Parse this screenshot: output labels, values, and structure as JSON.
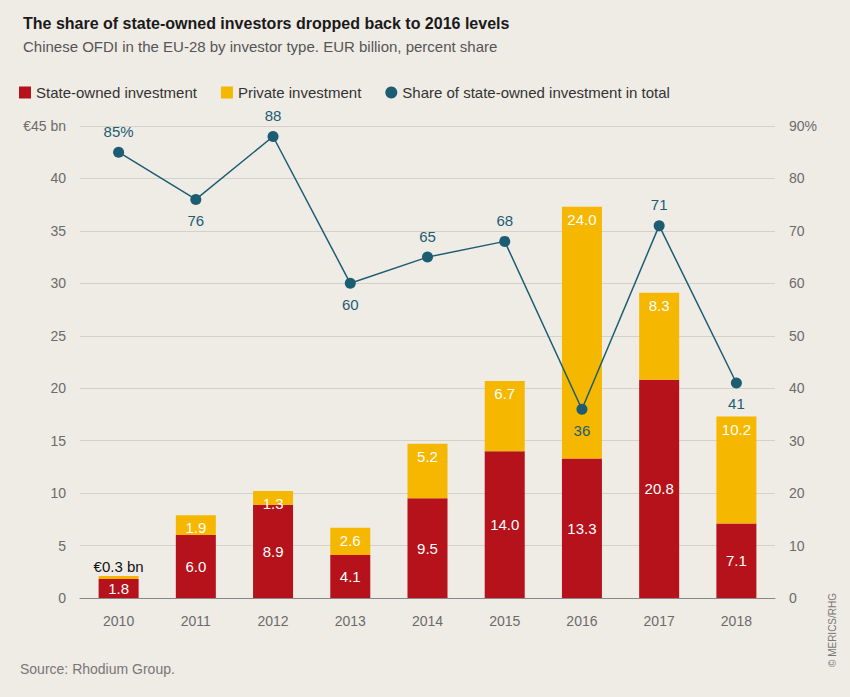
{
  "chart_data": {
    "type": "bar",
    "title": "The share of state-owned investors dropped back to 2016 levels",
    "subtitle": "Chinese OFDI in the EU-28 by investor type. EUR billion, percent share",
    "source": "Source: Rhodium Group.",
    "credit": "© MERICS/RHG",
    "categories": [
      "2010",
      "2011",
      "2012",
      "2013",
      "2014",
      "2015",
      "2016",
      "2017",
      "2018"
    ],
    "stacked": true,
    "data_labels": true,
    "grid": true,
    "legend": "top-left",
    "ylim": [
      0,
      45
    ],
    "yticks": [
      0,
      5,
      10,
      15,
      20,
      25,
      30,
      35,
      40,
      {
        "value": 45,
        "label": "€45 bn"
      }
    ],
    "y2lim": [
      0,
      90
    ],
    "y2ticks": [
      0,
      10,
      20,
      30,
      40,
      50,
      60,
      70,
      80,
      {
        "value": 90,
        "label": "90%"
      }
    ],
    "series": [
      {
        "name": "State-owned investment",
        "color": "#b5121b",
        "values": [
          1.8,
          6.0,
          8.9,
          4.1,
          9.5,
          14.0,
          13.3,
          20.8,
          7.1
        ],
        "value_labels": [
          "1.8",
          "6.0",
          "8.9",
          "4.1",
          "9.5",
          "14.0",
          "13.3",
          "20.8",
          "7.1"
        ]
      },
      {
        "name": "Private investment",
        "color": "#f5b700",
        "values": [
          0.3,
          1.9,
          1.3,
          2.6,
          5.2,
          6.7,
          24.0,
          8.3,
          10.2
        ],
        "value_labels": [
          "€0.3 bn",
          "1.9",
          "1.3",
          "2.6",
          "5.2",
          "6.7",
          "24.0",
          "8.3",
          "10.2"
        ]
      },
      {
        "name": "Share of state-owned investment in total",
        "type": "line",
        "axis": "y2",
        "color": "#1d5d73",
        "marker": "circle",
        "values": [
          85,
          76,
          88,
          60,
          65,
          68,
          36,
          71,
          41
        ],
        "value_labels": [
          "85%",
          "76",
          "88",
          "60",
          "65",
          "68",
          "36",
          "71",
          "41"
        ]
      }
    ]
  }
}
